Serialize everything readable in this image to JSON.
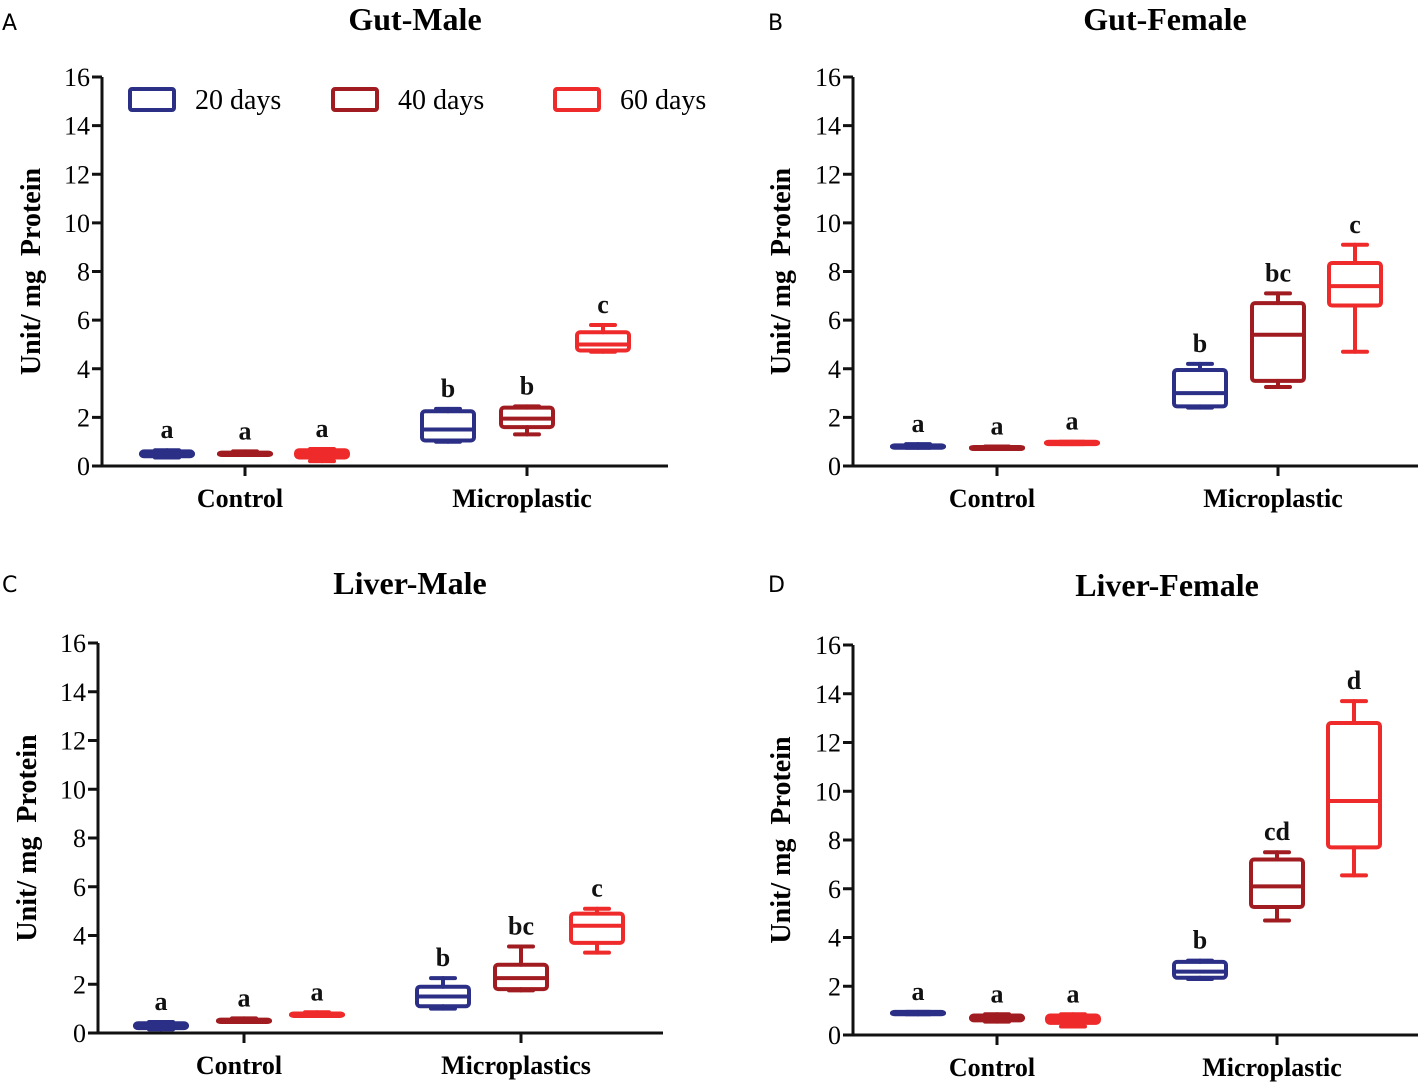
{
  "legend": [
    {
      "name": "20 days",
      "color": "#2b2f86"
    },
    {
      "name": "40 days",
      "color": "#a01c20"
    },
    {
      "name": "60 days",
      "color": "#ee2a2a"
    }
  ],
  "chart_data": [
    {
      "panel": "A",
      "type": "box",
      "title": "Gut-Male",
      "ylabel": "Unit/ mg  Protein",
      "ylim": [
        0,
        16
      ],
      "yticks": [
        "0",
        "2",
        "4",
        "6",
        "8",
        "10",
        "12",
        "14",
        "16"
      ],
      "categories": [
        "Control",
        "Microplastic"
      ],
      "legend_position": "top",
      "series": [
        {
          "name": "20 days",
          "boxes": [
            {
              "min": 0.35,
              "q1": 0.4,
              "median": 0.5,
              "q3": 0.6,
              "max": 0.65,
              "label": "a"
            },
            {
              "min": 1.0,
              "q1": 1.05,
              "median": 1.5,
              "q3": 2.25,
              "max": 2.35,
              "label": "b"
            }
          ]
        },
        {
          "name": "40 days",
          "boxes": [
            {
              "min": 0.45,
              "q1": 0.45,
              "median": 0.5,
              "q3": 0.55,
              "max": 0.6,
              "label": "a"
            },
            {
              "min": 1.3,
              "q1": 1.6,
              "median": 1.95,
              "q3": 2.4,
              "max": 2.45,
              "label": "b"
            }
          ]
        },
        {
          "name": "60 days",
          "boxes": [
            {
              "min": 0.2,
              "q1": 0.35,
              "median": 0.5,
              "q3": 0.65,
              "max": 0.7,
              "label": "a"
            },
            {
              "min": 4.7,
              "q1": 4.75,
              "median": 5.0,
              "q3": 5.5,
              "max": 5.8,
              "label": "c"
            }
          ]
        }
      ]
    },
    {
      "panel": "B",
      "type": "box",
      "title": "Gut-Female",
      "ylabel": "Unit/ mg  Protein",
      "ylim": [
        0,
        16
      ],
      "yticks": [
        "0",
        "2",
        "4",
        "6",
        "8",
        "10",
        "12",
        "14",
        "16"
      ],
      "categories": [
        "Control",
        "Microplastic"
      ],
      "series": [
        {
          "name": "20 days",
          "boxes": [
            {
              "min": 0.75,
              "q1": 0.75,
              "median": 0.8,
              "q3": 0.85,
              "max": 0.9,
              "label": "a"
            },
            {
              "min": 2.4,
              "q1": 2.45,
              "median": 3.0,
              "q3": 3.95,
              "max": 4.2,
              "label": "b"
            }
          ]
        },
        {
          "name": "40 days",
          "boxes": [
            {
              "min": 0.7,
              "q1": 0.72,
              "median": 0.75,
              "q3": 0.78,
              "max": 0.8,
              "label": "a"
            },
            {
              "min": 3.25,
              "q1": 3.5,
              "median": 5.4,
              "q3": 6.7,
              "max": 7.1,
              "label": "bc"
            }
          ]
        },
        {
          "name": "60 days",
          "boxes": [
            {
              "min": 0.9,
              "q1": 0.9,
              "median": 0.95,
              "q3": 1.0,
              "max": 1.0,
              "label": "a"
            },
            {
              "min": 4.7,
              "q1": 6.6,
              "median": 7.4,
              "q3": 8.35,
              "max": 9.1,
              "label": "c"
            }
          ]
        }
      ]
    },
    {
      "panel": "C",
      "type": "box",
      "title": "Liver-Male",
      "ylabel": "Unit/ mg  Protein",
      "ylim": [
        0,
        16
      ],
      "yticks": [
        "0",
        "2",
        "4",
        "6",
        "8",
        "10",
        "12",
        "14",
        "16"
      ],
      "categories": [
        "Control",
        "Microplastics"
      ],
      "series": [
        {
          "name": "20 days",
          "boxes": [
            {
              "min": 0.15,
              "q1": 0.2,
              "median": 0.3,
              "q3": 0.4,
              "max": 0.45,
              "label": "a"
            },
            {
              "min": 1.0,
              "q1": 1.1,
              "median": 1.5,
              "q3": 1.9,
              "max": 2.25,
              "label": "b"
            }
          ]
        },
        {
          "name": "40 days",
          "boxes": [
            {
              "min": 0.45,
              "q1": 0.45,
              "median": 0.5,
              "q3": 0.55,
              "max": 0.6,
              "label": "a"
            },
            {
              "min": 1.75,
              "q1": 1.8,
              "median": 2.25,
              "q3": 2.8,
              "max": 3.55,
              "label": "bc"
            }
          ]
        },
        {
          "name": "60 days",
          "boxes": [
            {
              "min": 0.7,
              "q1": 0.7,
              "median": 0.75,
              "q3": 0.8,
              "max": 0.85,
              "label": "a"
            },
            {
              "min": 3.3,
              "q1": 3.7,
              "median": 4.4,
              "q3": 4.9,
              "max": 5.1,
              "label": "c"
            }
          ]
        }
      ]
    },
    {
      "panel": "D",
      "type": "box",
      "title": "Liver-Female",
      "ylabel": "Unit/ mg  Protein",
      "ylim": [
        0,
        16
      ],
      "yticks": [
        "0",
        "2",
        "4",
        "6",
        "8",
        "10",
        "12",
        "14",
        "16"
      ],
      "categories": [
        "Control",
        "Microplastic"
      ],
      "series": [
        {
          "name": "20 days",
          "boxes": [
            {
              "min": 0.85,
              "q1": 0.85,
              "median": 0.9,
              "q3": 0.95,
              "max": 0.95,
              "label": "a"
            },
            {
              "min": 2.3,
              "q1": 2.35,
              "median": 2.6,
              "q3": 3.0,
              "max": 3.05,
              "label": "b"
            }
          ]
        },
        {
          "name": "40 days",
          "boxes": [
            {
              "min": 0.55,
              "q1": 0.6,
              "median": 0.7,
              "q3": 0.8,
              "max": 0.85,
              "label": "a"
            },
            {
              "min": 4.7,
              "q1": 5.25,
              "median": 6.1,
              "q3": 7.2,
              "max": 7.5,
              "label": "cd"
            }
          ]
        },
        {
          "name": "60 days",
          "boxes": [
            {
              "min": 0.35,
              "q1": 0.5,
              "median": 0.65,
              "q3": 0.8,
              "max": 0.85,
              "label": "a"
            },
            {
              "min": 6.55,
              "q1": 7.7,
              "median": 9.6,
              "q3": 12.8,
              "max": 13.7,
              "label": "d"
            }
          ]
        }
      ]
    }
  ]
}
